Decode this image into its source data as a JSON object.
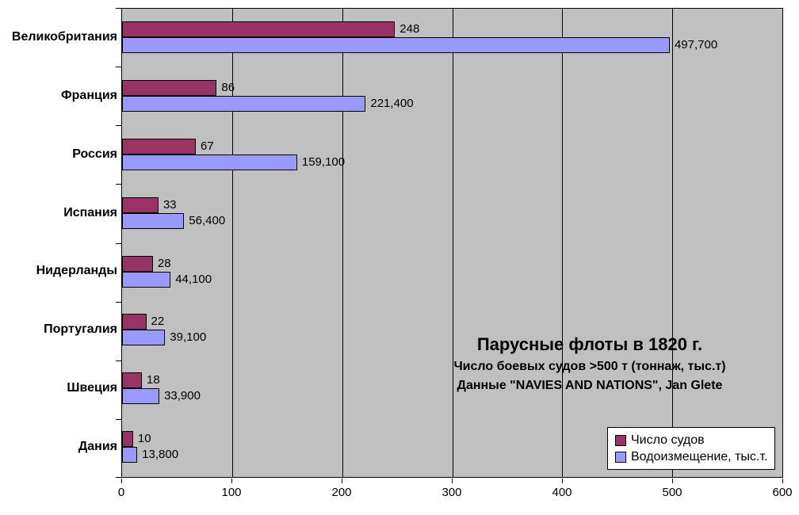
{
  "chart_data": {
    "type": "bar",
    "orientation": "horizontal",
    "title": "Парусные флоты в 1820 г.",
    "subtitle1": "Число боевых судов >500 т (тоннаж, тыс.т)",
    "subtitle2": "Данные \"NAVIES AND NATIONS\", Jan Glete",
    "categories": [
      "Великобритания",
      "Франция",
      "Россия",
      "Испания",
      "Нидерланды",
      "Португалия",
      "Швеция",
      "Дания"
    ],
    "series": [
      {
        "name": "Число судов",
        "color": "#993366",
        "values": [
          248,
          86,
          67,
          33,
          28,
          22,
          18,
          10
        ],
        "labels": [
          "248",
          "86",
          "67",
          "33",
          "28",
          "22",
          "18",
          "10"
        ]
      },
      {
        "name": "Водоизмещение, тыс.т.",
        "color": "#9999FF",
        "values": [
          497.7,
          221.4,
          159.1,
          56.4,
          44.1,
          39.1,
          33.9,
          13.8
        ],
        "labels": [
          "497,700",
          "221,400",
          "159,100",
          "56,400",
          "44,100",
          "39,100",
          "33,900",
          "13,800"
        ]
      }
    ],
    "x_axis": {
      "min": 0,
      "max": 600,
      "ticks": [
        "0",
        "100",
        "200",
        "300",
        "400",
        "500",
        "600"
      ],
      "tick_values": [
        0,
        100,
        200,
        300,
        400,
        500,
        600
      ]
    },
    "legend": {
      "position": "bottom-right",
      "entries": [
        "Число судов",
        "Водоизмещение, тыс.т."
      ]
    },
    "colors": {
      "plot_background": "#C0C0C0",
      "gridline": "#000000",
      "bar_border": "#000000",
      "text": "#000000",
      "outer_background": "#FFFFFF"
    },
    "grid": "vertical major gridlines every 100"
  }
}
